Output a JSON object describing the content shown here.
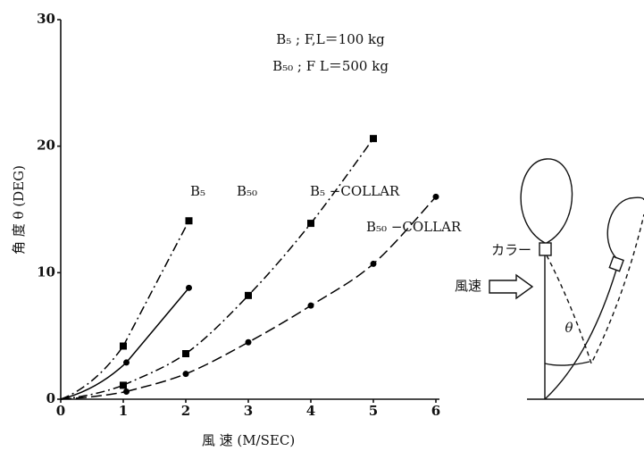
{
  "chart_data": {
    "type": "line",
    "annotations": [
      "B₅ ; F,L＝100 kg",
      "B₅₀ ; F L＝500 kg"
    ],
    "x_label": "風 速 (M/SEC)",
    "y_label": "角 度 θ (DEG)",
    "xlim": [
      0,
      6
    ],
    "xticks": [
      0,
      1,
      2,
      3,
      4,
      5,
      6
    ],
    "ylim": [
      0,
      30
    ],
    "yticks": [
      0,
      10,
      20,
      30
    ],
    "series": [
      {
        "name": "B₅",
        "color": "#000000",
        "marker": "square",
        "line_style": "dashdot",
        "x": [
          1,
          2.05
        ],
        "values": [
          4.2,
          14.1
        ]
      },
      {
        "name": "B₅₀",
        "color": "#000000",
        "marker": "circle",
        "line_style": "solid",
        "x": [
          1.05,
          2.05
        ],
        "values": [
          2.9,
          8.8
        ]
      },
      {
        "name": "B₅ −COLLAR",
        "color": "#000000",
        "marker": "square",
        "line_style": "dashdot",
        "x": [
          1,
          2,
          3,
          4,
          5
        ],
        "values": [
          1.1,
          3.6,
          8.2,
          13.9,
          20.6
        ]
      },
      {
        "name": "B₅₀ −COLLAR",
        "color": "#000000",
        "marker": "circle",
        "line_style": "dashed",
        "x": [
          1.05,
          2,
          3,
          4,
          5,
          6
        ],
        "values": [
          0.6,
          2.0,
          4.5,
          7.4,
          10.7,
          16.0
        ]
      }
    ]
  },
  "diagram": {
    "collar_label": "カラー",
    "wind_label": "風速",
    "angle_label": "θ"
  }
}
